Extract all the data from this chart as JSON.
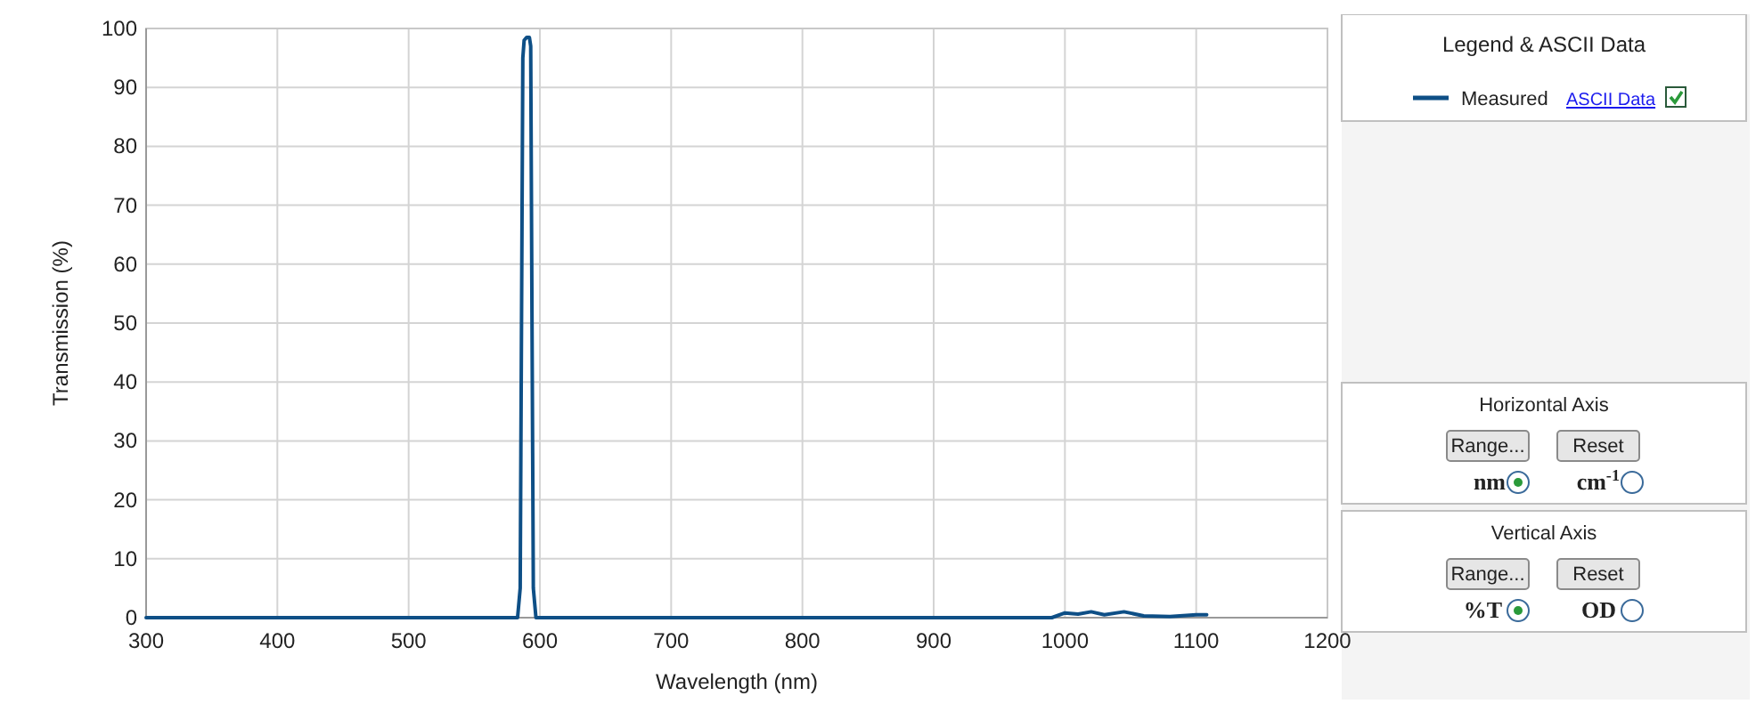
{
  "chart_data": {
    "type": "line",
    "xlabel": "Wavelength (nm)",
    "ylabel": "Transmission (%)",
    "series": [
      {
        "name": "Measured",
        "color": "#0e4f86",
        "x": [
          300,
          583,
          585,
          586,
          587,
          588,
          590,
          592,
          593,
          594,
          595,
          597,
          990,
          1000,
          1010,
          1020,
          1030,
          1045,
          1060,
          1080,
          1100,
          1108
        ],
        "values": [
          0,
          0,
          5,
          50,
          95,
          98,
          98.5,
          98.5,
          97,
          50,
          5,
          0,
          0,
          0.8,
          0.6,
          1.0,
          0.5,
          1.0,
          0.3,
          0.2,
          0.5,
          0.5
        ]
      }
    ],
    "xlim": [
      300,
      1200
    ],
    "xticks": [
      300,
      400,
      500,
      600,
      700,
      800,
      900,
      1000,
      1100,
      1200
    ],
    "ylim": [
      0,
      100
    ],
    "yticks": [
      0,
      10,
      20,
      30,
      40,
      50,
      60,
      70,
      80,
      90,
      100
    ],
    "grid": true,
    "legend": "top right",
    "line_style": "solid",
    "marker": "none",
    "annotations": [
      "Legend & ASCII Data",
      "ASCII Data",
      "Horizontal Axis",
      "Range...",
      "Reset",
      "nm",
      "cm$^{-1}$",
      "Vertical Axis",
      "Range...",
      "Reset",
      "%T",
      "OD"
    ]
  }
}
